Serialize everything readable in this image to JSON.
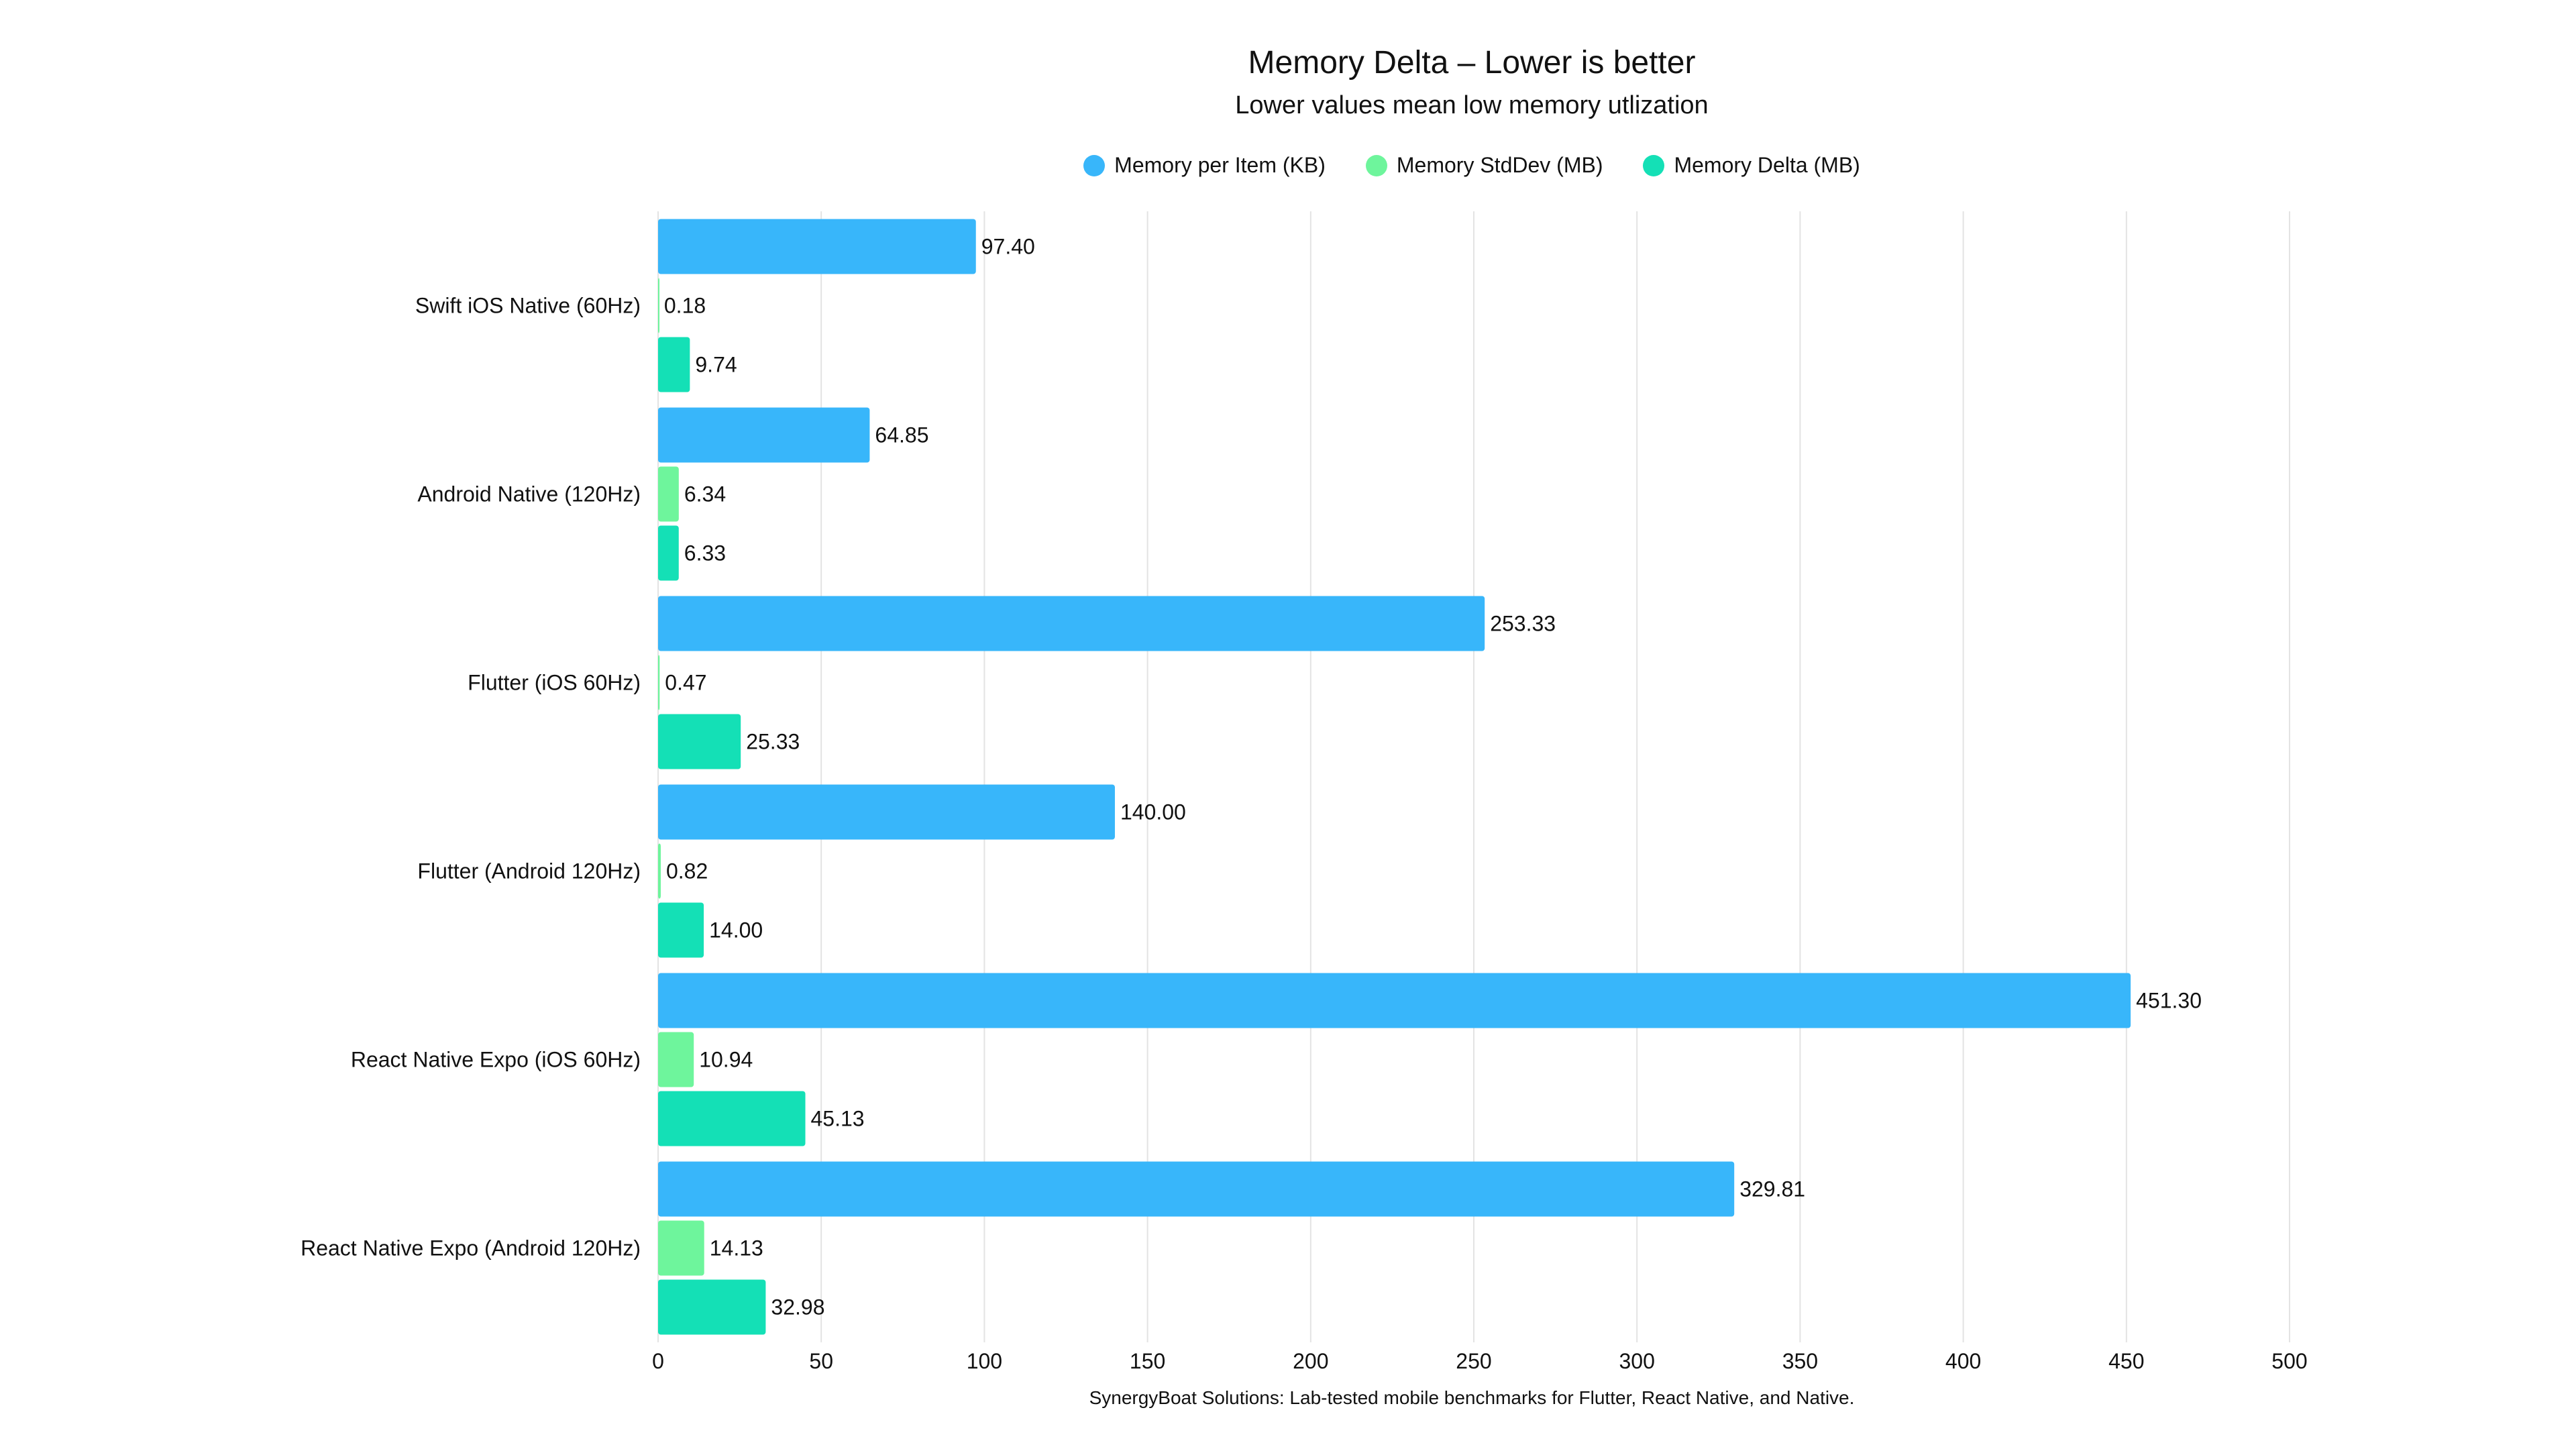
{
  "chart_data": {
    "type": "bar",
    "orientation": "horizontal",
    "title": "Memory Delta – Lower is better",
    "subtitle": "Lower values mean low memory utlization",
    "footer": "SynergyBoat Solutions: Lab-tested mobile benchmarks for Flutter, React Native, and Native.",
    "categories": [
      "Swift iOS Native (60Hz)",
      "Android Native (120Hz)",
      "Flutter (iOS 60Hz)",
      "Flutter (Android 120Hz)",
      "React Native Expo (iOS 60Hz)",
      "React Native Expo (Android 120Hz)"
    ],
    "series": [
      {
        "name": "Memory per Item (KB)",
        "color": "#38b6fa",
        "values": [
          97.4,
          64.85,
          253.33,
          140.0,
          451.3,
          329.81
        ]
      },
      {
        "name": "Memory StdDev (MB)",
        "color": "#6ef59c",
        "values": [
          0.18,
          6.34,
          0.47,
          0.82,
          10.94,
          14.13
        ]
      },
      {
        "name": "Memory Delta (MB)",
        "color": "#14e0b6",
        "values": [
          9.74,
          6.33,
          25.33,
          14.0,
          45.13,
          32.98
        ]
      }
    ],
    "xlim": [
      0,
      500
    ],
    "xticks": [
      "0",
      "50",
      "100",
      "150",
      "200",
      "250",
      "300",
      "350",
      "400",
      "450",
      "500"
    ],
    "grid": true,
    "legend": "top-center"
  }
}
